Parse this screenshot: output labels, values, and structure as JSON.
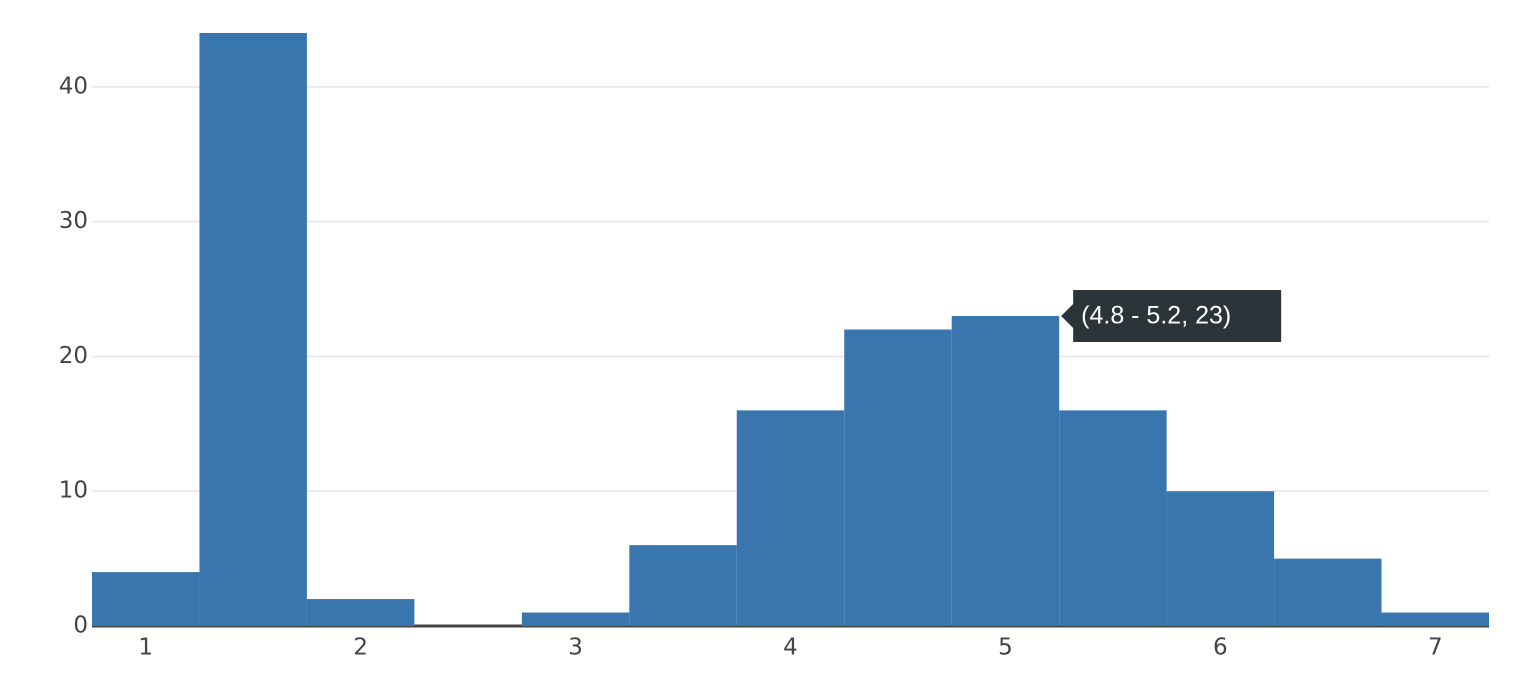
{
  "chart_data": {
    "type": "histogram",
    "bins": [
      0.75,
      1.25,
      1.75,
      2.25,
      2.75,
      3.25,
      3.75,
      4.25,
      4.75,
      5.25,
      5.75,
      6.25,
      6.75,
      7.25
    ],
    "values": [
      4,
      44,
      2,
      0,
      1,
      6,
      16,
      22,
      23,
      16,
      10,
      5,
      1
    ],
    "color": "#3a76ae",
    "xlim": [
      0.75,
      7.25
    ],
    "xticks": [
      1,
      2,
      3,
      4,
      5,
      6,
      7
    ],
    "ylim": [
      0,
      46.3
    ],
    "yticks": [
      0,
      10,
      20,
      30,
      40
    ],
    "grid": true,
    "tooltip": "(4.8 - 5.2, 23)"
  }
}
